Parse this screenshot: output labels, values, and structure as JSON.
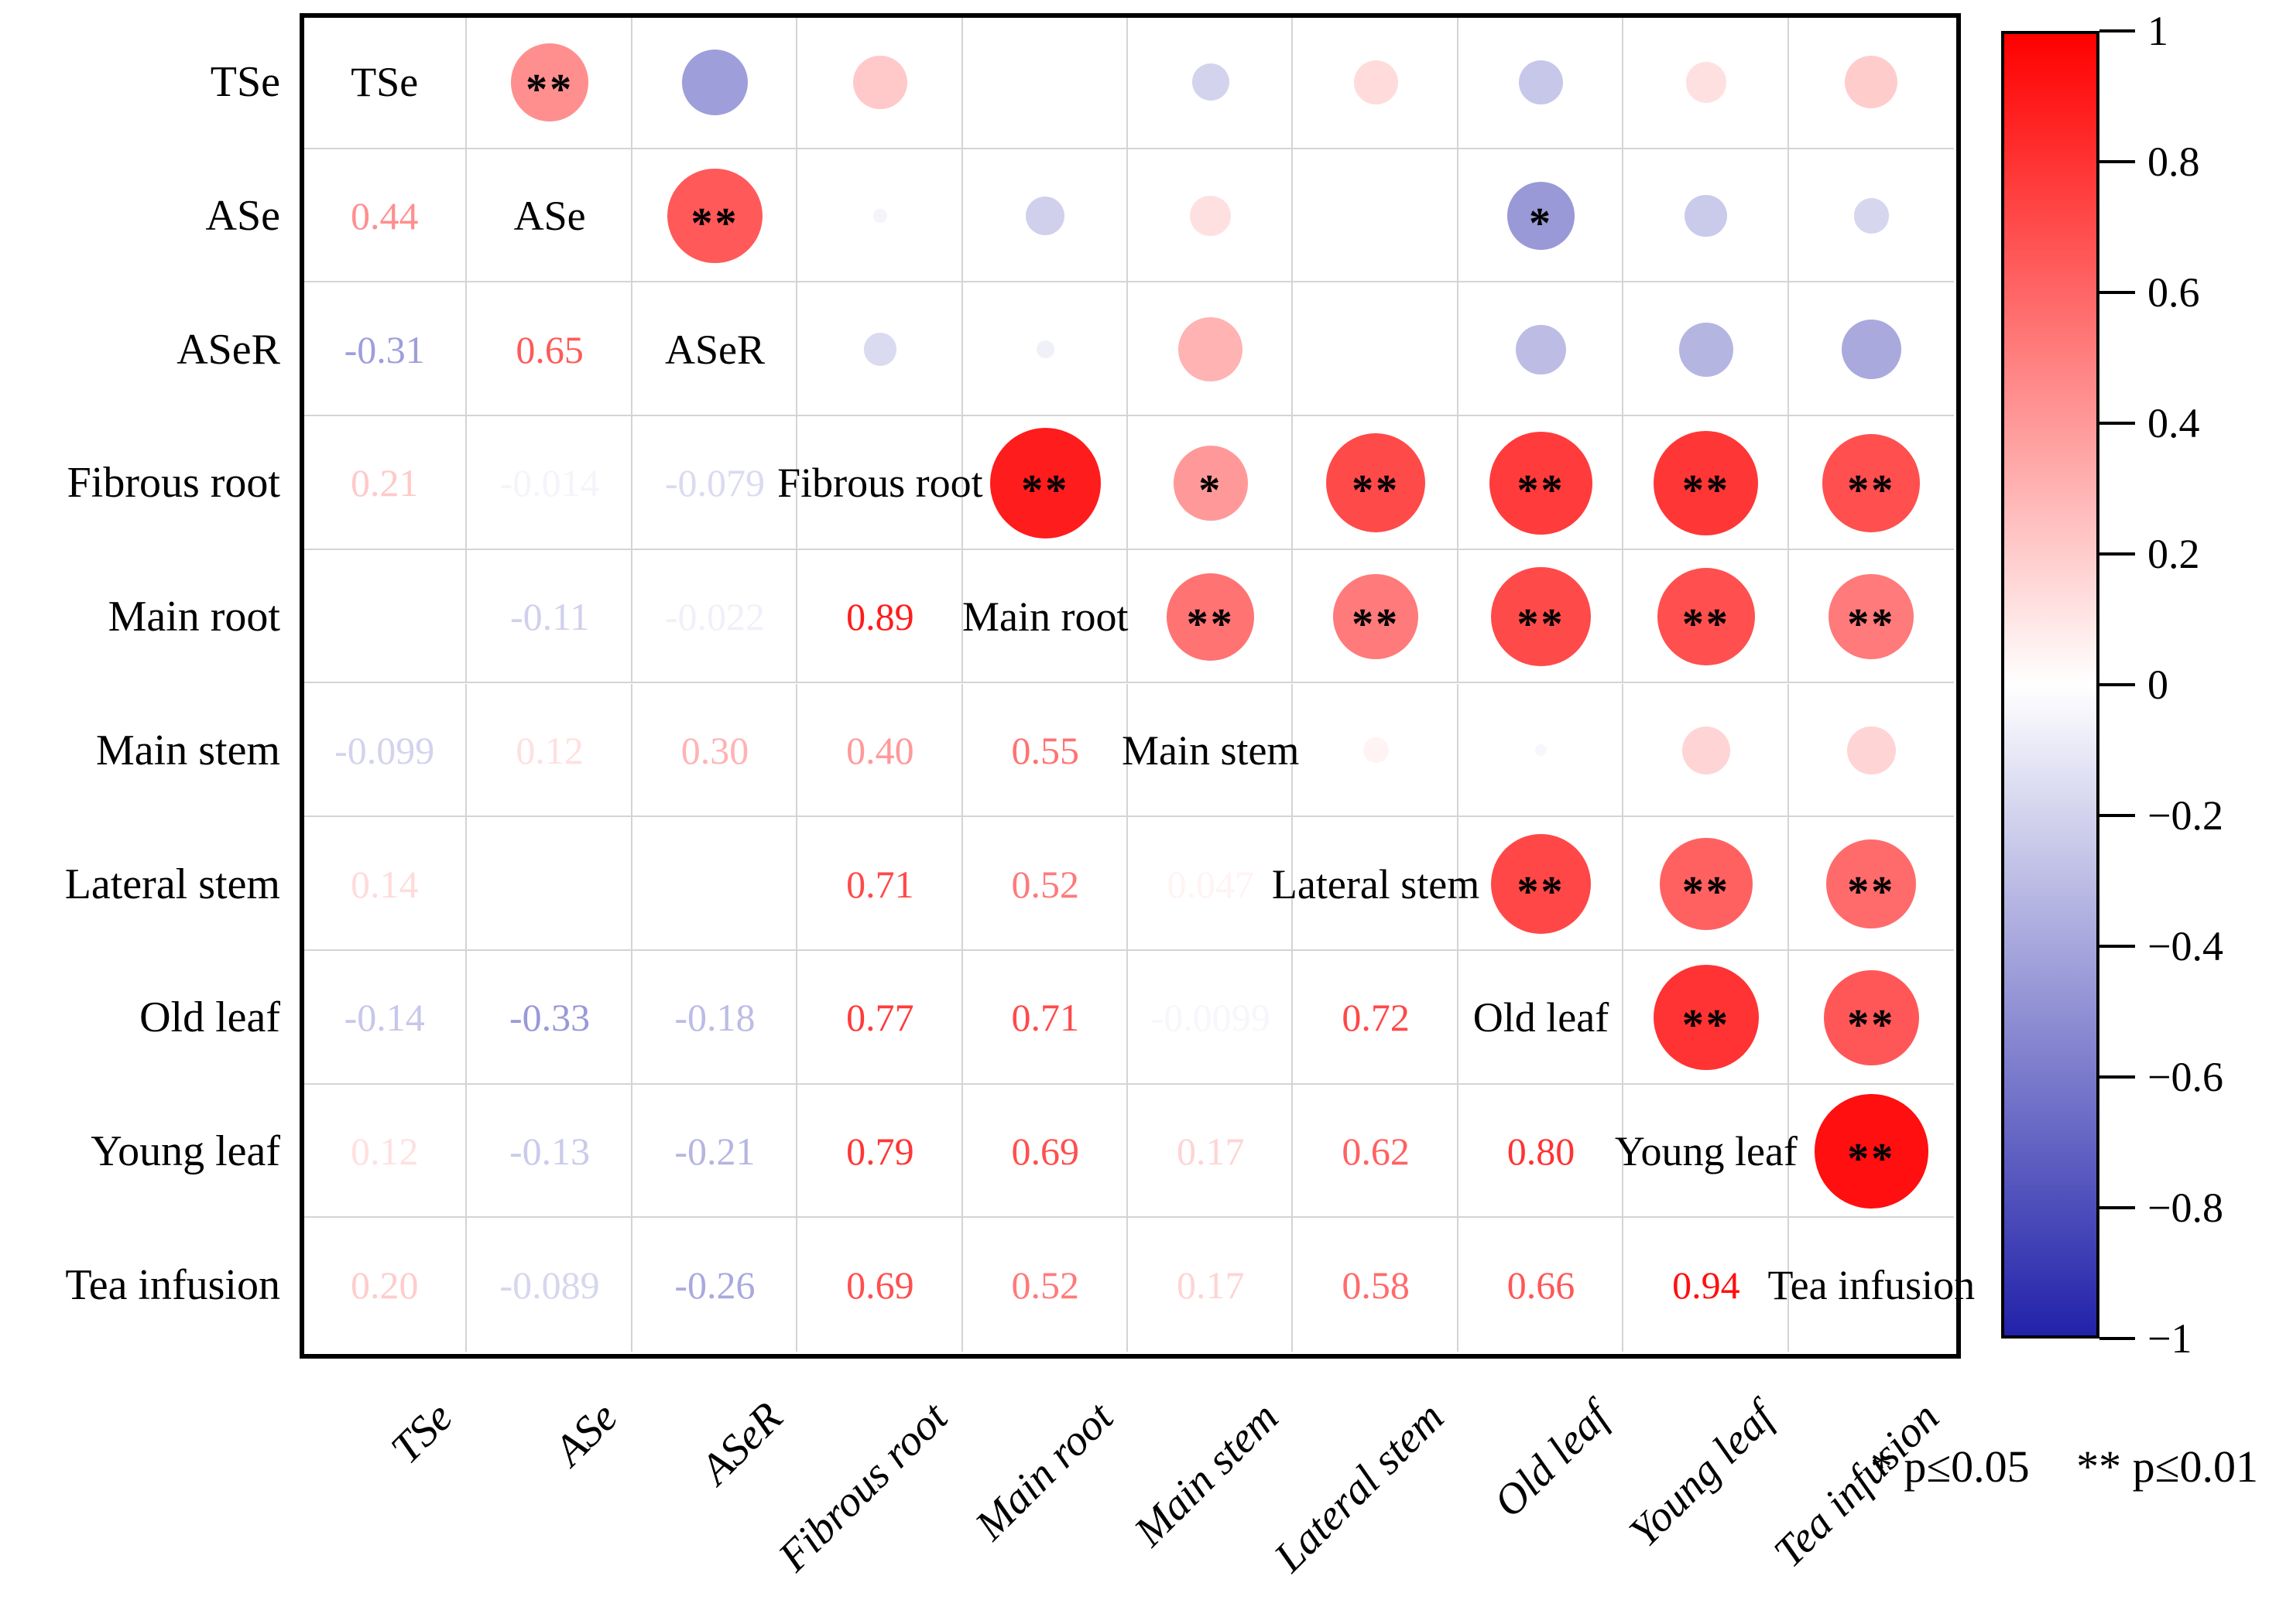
{
  "chart_data": {
    "type": "heatmap",
    "subtype": "correlation-matrix-corrplot",
    "title": "",
    "variables": [
      "TSe",
      "ASe",
      "ASeR",
      "Fibrous root",
      "Main root",
      "Main stem",
      "Lateral stem",
      "Old leaf",
      "Young leaf",
      "Tea infusion"
    ],
    "lower_triangle_values": [
      [],
      [
        "0.44"
      ],
      [
        "-0.31",
        "0.65"
      ],
      [
        "0.21",
        "-0.014",
        "-0.079"
      ],
      [
        null,
        "-0.11",
        "-0.022",
        "0.89"
      ],
      [
        "-0.099",
        "0.12",
        "0.30",
        "0.40",
        "0.55"
      ],
      [
        "0.14",
        null,
        null,
        "0.71",
        "0.52",
        "0.047"
      ],
      [
        "-0.14",
        "-0.33",
        "-0.18",
        "0.77",
        "0.71",
        "-0.0099",
        "0.72"
      ],
      [
        "0.12",
        "-0.13",
        "-0.21",
        "0.79",
        "0.69",
        "0.17",
        "0.62",
        "0.80"
      ],
      [
        "0.20",
        "-0.089",
        "-0.26",
        "0.69",
        "0.52",
        "0.17",
        "0.58",
        "0.66",
        "0.94"
      ]
    ],
    "significance": [
      {
        "row": 0,
        "col": 1,
        "mark": "**"
      },
      {
        "row": 1,
        "col": 2,
        "mark": "**"
      },
      {
        "row": 1,
        "col": 7,
        "mark": "*"
      },
      {
        "row": 3,
        "col": 4,
        "mark": "**"
      },
      {
        "row": 3,
        "col": 5,
        "mark": "*"
      },
      {
        "row": 3,
        "col": 6,
        "mark": "**"
      },
      {
        "row": 3,
        "col": 7,
        "mark": "**"
      },
      {
        "row": 3,
        "col": 8,
        "mark": "**"
      },
      {
        "row": 3,
        "col": 9,
        "mark": "**"
      },
      {
        "row": 4,
        "col": 5,
        "mark": "**"
      },
      {
        "row": 4,
        "col": 6,
        "mark": "**"
      },
      {
        "row": 4,
        "col": 7,
        "mark": "**"
      },
      {
        "row": 4,
        "col": 8,
        "mark": "**"
      },
      {
        "row": 4,
        "col": 9,
        "mark": "**"
      },
      {
        "row": 6,
        "col": 7,
        "mark": "**"
      },
      {
        "row": 6,
        "col": 8,
        "mark": "**"
      },
      {
        "row": 6,
        "col": 9,
        "mark": "**"
      },
      {
        "row": 7,
        "col": 8,
        "mark": "**"
      },
      {
        "row": 7,
        "col": 9,
        "mark": "**"
      },
      {
        "row": 8,
        "col": 9,
        "mark": "**"
      }
    ],
    "colorbar": {
      "ticks": [
        "1",
        "0.8",
        "0.6",
        "0.4",
        "0.2",
        "0",
        "−0.2",
        "−0.4",
        "−0.6",
        "−0.8",
        "−1"
      ],
      "range": [
        -1,
        1
      ],
      "max_color": "#FF0000",
      "mid_color": "#FFFFFF",
      "min_color": "#2222AA",
      "position": "right"
    },
    "legend": {
      "p05": "* p≤0.05",
      "p01": "** p≤0.01"
    },
    "layout": {
      "grid": true,
      "diagonal": "variable-names",
      "lower_triangle": "numbers",
      "upper_triangle": "circles"
    }
  }
}
